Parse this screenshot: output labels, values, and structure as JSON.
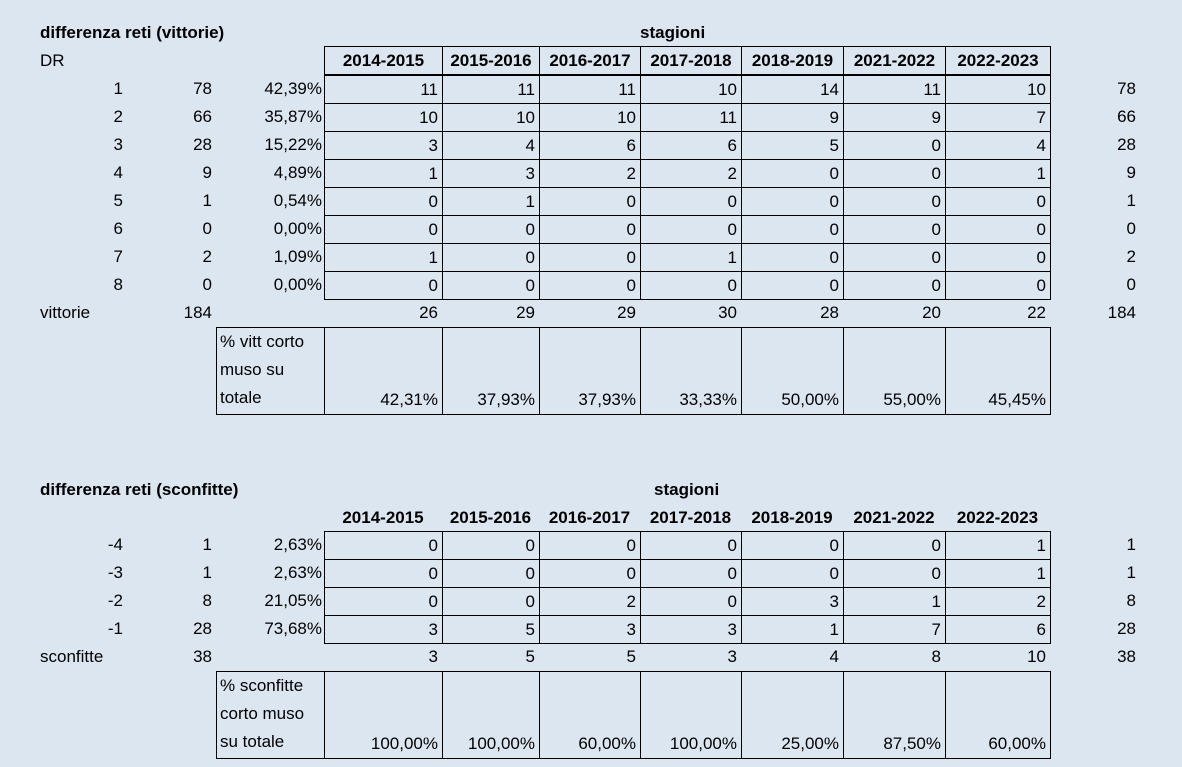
{
  "wins": {
    "title": "differenza reti (vittorie)",
    "seasons_title": "stagioni",
    "dr_label": "DR",
    "seasons": [
      "2014-2015",
      "2015-2016",
      "2016-2017",
      "2017-2018",
      "2018-2019",
      "2021-2022",
      "2022-2023"
    ],
    "rows": [
      {
        "dr": "1",
        "count": "78",
        "pct": "42,39%",
        "vals": [
          "11",
          "11",
          "11",
          "10",
          "14",
          "11",
          "10"
        ],
        "total": "78"
      },
      {
        "dr": "2",
        "count": "66",
        "pct": "35,87%",
        "vals": [
          "10",
          "10",
          "10",
          "11",
          "9",
          "9",
          "7"
        ],
        "total": "66"
      },
      {
        "dr": "3",
        "count": "28",
        "pct": "15,22%",
        "vals": [
          "3",
          "4",
          "6",
          "6",
          "5",
          "0",
          "4"
        ],
        "total": "28"
      },
      {
        "dr": "4",
        "count": "9",
        "pct": "4,89%",
        "vals": [
          "1",
          "3",
          "2",
          "2",
          "0",
          "0",
          "1"
        ],
        "total": "9"
      },
      {
        "dr": "5",
        "count": "1",
        "pct": "0,54%",
        "vals": [
          "0",
          "1",
          "0",
          "0",
          "0",
          "0",
          "0"
        ],
        "total": "1"
      },
      {
        "dr": "6",
        "count": "0",
        "pct": "0,00%",
        "vals": [
          "0",
          "0",
          "0",
          "0",
          "0",
          "0",
          "0"
        ],
        "total": "0"
      },
      {
        "dr": "7",
        "count": "2",
        "pct": "1,09%",
        "vals": [
          "1",
          "0",
          "0",
          "1",
          "0",
          "0",
          "0"
        ],
        "total": "2"
      },
      {
        "dr": "8",
        "count": "0",
        "pct": "0,00%",
        "vals": [
          "0",
          "0",
          "0",
          "0",
          "0",
          "0",
          "0"
        ],
        "total": "0"
      }
    ],
    "sum_label": "vittorie",
    "sum_count": "184",
    "sum_vals": [
      "26",
      "29",
      "29",
      "30",
      "28",
      "20",
      "22"
    ],
    "sum_total": "184",
    "pct_label": "% vitt corto muso su totale",
    "pct_vals": [
      "42,31%",
      "37,93%",
      "37,93%",
      "33,33%",
      "50,00%",
      "55,00%",
      "45,45%"
    ]
  },
  "losses": {
    "title": "differenza reti (sconfitte)",
    "seasons_title": "stagioni",
    "seasons": [
      "2014-2015",
      "2015-2016",
      "2016-2017",
      "2017-2018",
      "2018-2019",
      "2021-2022",
      "2022-2023"
    ],
    "rows": [
      {
        "dr": "-4",
        "count": "1",
        "pct": "2,63%",
        "vals": [
          "0",
          "0",
          "0",
          "0",
          "0",
          "0",
          "1"
        ],
        "total": "1"
      },
      {
        "dr": "-3",
        "count": "1",
        "pct": "2,63%",
        "vals": [
          "0",
          "0",
          "0",
          "0",
          "0",
          "0",
          "1"
        ],
        "total": "1"
      },
      {
        "dr": "-2",
        "count": "8",
        "pct": "21,05%",
        "vals": [
          "0",
          "0",
          "2",
          "0",
          "3",
          "1",
          "2"
        ],
        "total": "8"
      },
      {
        "dr": "-1",
        "count": "28",
        "pct": "73,68%",
        "vals": [
          "3",
          "5",
          "3",
          "3",
          "1",
          "7",
          "6"
        ],
        "total": "28"
      }
    ],
    "sum_label": "sconfitte",
    "sum_count": "38",
    "sum_vals": [
      "3",
      "5",
      "5",
      "3",
      "4",
      "8",
      "10"
    ],
    "sum_total": "38",
    "pct_label": "% sconfitte corto muso su totale",
    "pct_vals": [
      "100,00%",
      "100,00%",
      "60,00%",
      "100,00%",
      "25,00%",
      "87,50%",
      "60,00%"
    ]
  }
}
